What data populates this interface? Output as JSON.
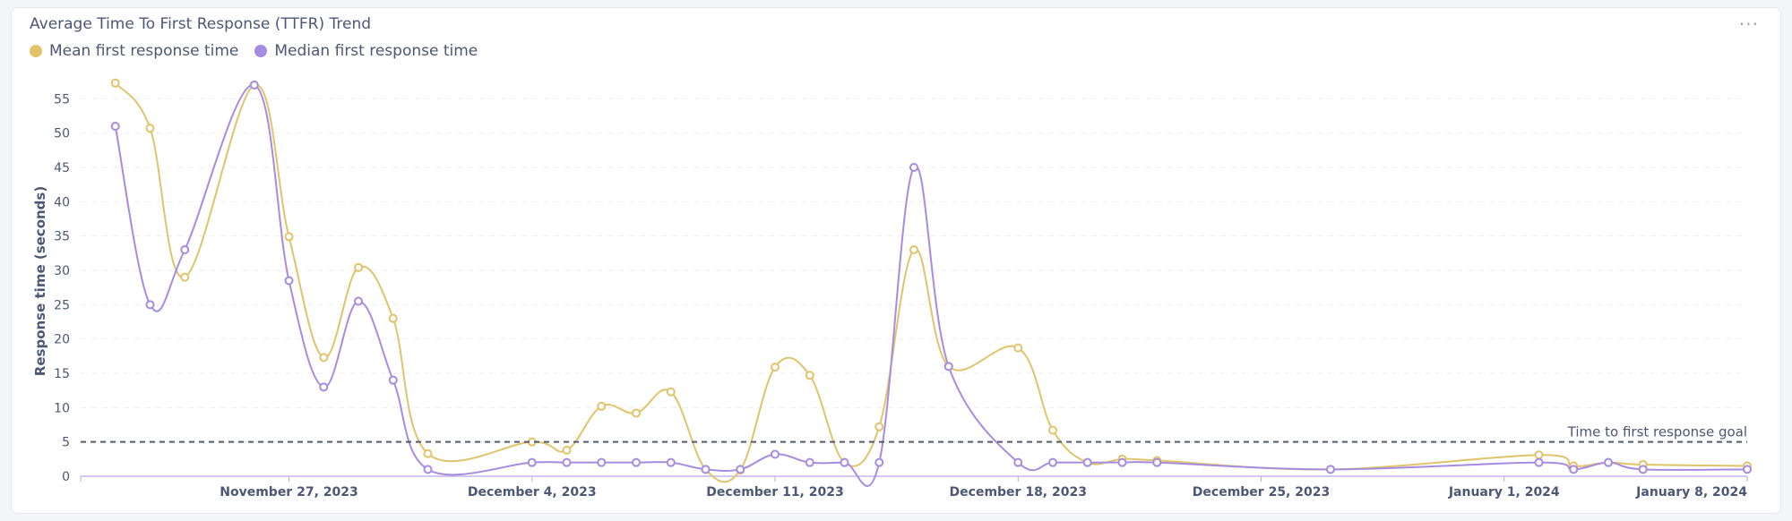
{
  "card": {
    "title": "Average Time To First Response (TTFR) Trend",
    "menu_icon": "ellipsis-icon",
    "menu_glyph": "···"
  },
  "chart_data": {
    "type": "line",
    "title": "Average Time To First Response (TTFR) Trend",
    "ylabel": "Response time (seconds)",
    "xlabel": "",
    "ylim": [
      0,
      60
    ],
    "yticks": [
      0,
      5,
      10,
      15,
      20,
      25,
      30,
      35,
      40,
      45,
      50,
      55
    ],
    "xticks": [
      {
        "date": "2023-11-27",
        "label": "November 27, 2023"
      },
      {
        "date": "2023-12-04",
        "label": "December 4, 2023"
      },
      {
        "date": "2023-12-11",
        "label": "December 11, 2023"
      },
      {
        "date": "2023-12-18",
        "label": "December 18, 2023"
      },
      {
        "date": "2023-12-25",
        "label": "December 25, 2023"
      },
      {
        "date": "2024-01-01",
        "label": "January 1, 2024"
      },
      {
        "date": "2024-01-08",
        "label": "January 8, 2024"
      }
    ],
    "xlim": [
      "2023-11-21",
      "2024-01-08"
    ],
    "grid": "horizontal dashed",
    "legend_position": "top-left",
    "goal_line": {
      "value": 5,
      "label": "Time to first response goal"
    },
    "series": [
      {
        "name": "Mean first response time",
        "color": "#e0c36a",
        "points": [
          [
            "2023-11-22",
            57.3
          ],
          [
            "2023-11-23",
            50.7
          ],
          [
            "2023-11-24",
            29.0
          ],
          [
            "2023-11-26",
            57.0
          ],
          [
            "2023-11-27",
            34.9
          ],
          [
            "2023-11-28",
            17.3
          ],
          [
            "2023-11-29",
            30.4
          ],
          [
            "2023-11-30",
            23.0
          ],
          [
            "2023-12-01",
            3.3
          ],
          [
            "2023-12-04",
            5.0
          ],
          [
            "2023-12-05",
            3.8
          ],
          [
            "2023-12-06",
            10.2
          ],
          [
            "2023-12-07",
            9.2
          ],
          [
            "2023-12-08",
            12.3
          ],
          [
            "2023-12-09",
            1.0
          ],
          [
            "2023-12-10",
            0.9
          ],
          [
            "2023-12-11",
            15.9
          ],
          [
            "2023-12-12",
            14.7
          ],
          [
            "2023-12-13",
            2.0
          ],
          [
            "2023-12-14",
            7.2
          ],
          [
            "2023-12-15",
            33.0
          ],
          [
            "2023-12-16",
            16.0
          ],
          [
            "2023-12-18",
            18.7
          ],
          [
            "2023-12-19",
            6.7
          ],
          [
            "2023-12-20",
            2.0
          ],
          [
            "2023-12-21",
            2.5
          ],
          [
            "2023-12-22",
            2.3
          ],
          [
            "2023-12-27",
            1.0
          ],
          [
            "2024-01-02",
            3.1
          ],
          [
            "2024-01-03",
            1.5
          ],
          [
            "2024-01-04",
            2.0
          ],
          [
            "2024-01-05",
            1.7
          ],
          [
            "2024-01-08",
            1.5
          ]
        ]
      },
      {
        "name": "Median first response time",
        "color": "#a68ce0",
        "points": [
          [
            "2023-11-22",
            51.0
          ],
          [
            "2023-11-23",
            25.0
          ],
          [
            "2023-11-24",
            33.0
          ],
          [
            "2023-11-26",
            57.0
          ],
          [
            "2023-11-27",
            28.5
          ],
          [
            "2023-11-28",
            13.0
          ],
          [
            "2023-11-29",
            25.5
          ],
          [
            "2023-11-30",
            14.0
          ],
          [
            "2023-12-01",
            1.0
          ],
          [
            "2023-12-04",
            2.0
          ],
          [
            "2023-12-05",
            2.0
          ],
          [
            "2023-12-06",
            2.0
          ],
          [
            "2023-12-07",
            2.0
          ],
          [
            "2023-12-08",
            2.0
          ],
          [
            "2023-12-09",
            1.0
          ],
          [
            "2023-12-10",
            1.0
          ],
          [
            "2023-12-11",
            3.2
          ],
          [
            "2023-12-12",
            2.0
          ],
          [
            "2023-12-13",
            2.0
          ],
          [
            "2023-12-14",
            2.0
          ],
          [
            "2023-12-15",
            45.0
          ],
          [
            "2023-12-16",
            16.0
          ],
          [
            "2023-12-18",
            2.0
          ],
          [
            "2023-12-19",
            2.0
          ],
          [
            "2023-12-20",
            2.0
          ],
          [
            "2023-12-21",
            2.0
          ],
          [
            "2023-12-22",
            2.0
          ],
          [
            "2023-12-27",
            1.0
          ],
          [
            "2024-01-02",
            2.0
          ],
          [
            "2024-01-03",
            1.0
          ],
          [
            "2024-01-04",
            2.0
          ],
          [
            "2024-01-05",
            1.0
          ],
          [
            "2024-01-08",
            1.0
          ]
        ]
      }
    ]
  }
}
